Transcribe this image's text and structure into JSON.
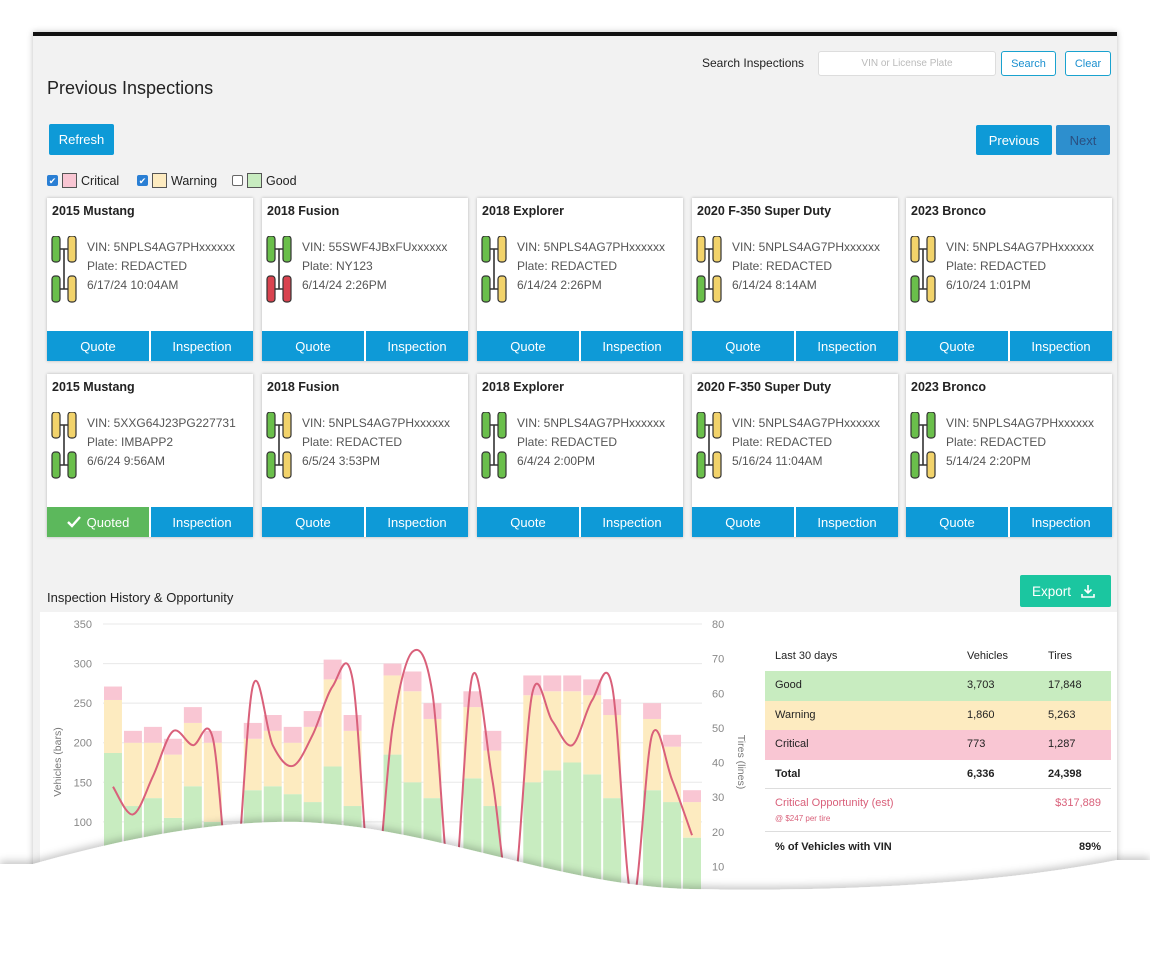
{
  "search": {
    "label": "Search Inspections",
    "placeholder": "VIN or License Plate",
    "search_button": "Search",
    "clear_button": "Clear"
  },
  "header": {
    "title": "Previous Inspections",
    "refresh": "Refresh",
    "previous": "Previous",
    "next": "Next"
  },
  "filters": [
    {
      "label": "Critical",
      "checked": true,
      "color": "#f9c6d3"
    },
    {
      "label": "Warning",
      "checked": true,
      "color": "#fdebc0"
    },
    {
      "label": "Good",
      "checked": false,
      "color": "#c8ecc0"
    }
  ],
  "cards": [
    {
      "title": "2015 Mustang",
      "vin": "VIN: 5NPLS4AG7PHxxxxxx",
      "plate": "Plate: REDACTED",
      "date": "6/17/24 10:04AM",
      "quote": "Quote",
      "inspection": "Inspection",
      "quoted": false,
      "tires": [
        "#6abf4b",
        "#f2d36b",
        "#6abf4b",
        "#f2d36b"
      ]
    },
    {
      "title": "2018 Fusion",
      "vin": "VIN: 55SWF4JBxFUxxxxxx",
      "plate": "Plate: NY123",
      "date": "6/14/24 2:26PM",
      "quote": "Quote",
      "inspection": "Inspection",
      "quoted": false,
      "tires": [
        "#6abf4b",
        "#6abf4b",
        "#d9434f",
        "#d9434f"
      ]
    },
    {
      "title": "2018 Explorer",
      "vin": "VIN: 5NPLS4AG7PHxxxxxx",
      "plate": "Plate: REDACTED",
      "date": "6/14/24 2:26PM",
      "quote": "Quote",
      "inspection": "Inspection",
      "quoted": false,
      "tires": [
        "#6abf4b",
        "#f2d36b",
        "#6abf4b",
        "#f2d36b"
      ]
    },
    {
      "title": "2020 F-350 Super Duty",
      "vin": "VIN: 5NPLS4AG7PHxxxxxx",
      "plate": "Plate: REDACTED",
      "date": "6/14/24 8:14AM",
      "quote": "Quote",
      "inspection": "Inspection",
      "quoted": false,
      "tires": [
        "#f2d36b",
        "#f2d36b",
        "#6abf4b",
        "#f2d36b"
      ]
    },
    {
      "title": "2023 Bronco",
      "vin": "VIN: 5NPLS4AG7PHxxxxxx",
      "plate": "Plate: REDACTED",
      "date": "6/10/24 1:01PM",
      "quote": "Quote",
      "inspection": "Inspection",
      "quoted": false,
      "tires": [
        "#f2d36b",
        "#f2d36b",
        "#6abf4b",
        "#f2d36b"
      ]
    },
    {
      "title": "2015 Mustang",
      "vin": "VIN: 5XXG64J23PG227731",
      "plate": "Plate: IMBAPP2",
      "date": "6/6/24 9:56AM",
      "quote": "Quoted",
      "inspection": "Inspection",
      "quoted": true,
      "tires": [
        "#f2d36b",
        "#f2d36b",
        "#6abf4b",
        "#6abf4b"
      ]
    },
    {
      "title": "2018 Fusion",
      "vin": "VIN: 5NPLS4AG7PHxxxxxx",
      "plate": "Plate: REDACTED",
      "date": "6/5/24 3:53PM",
      "quote": "Quote",
      "inspection": "Inspection",
      "quoted": false,
      "tires": [
        "#6abf4b",
        "#f2d36b",
        "#6abf4b",
        "#f2d36b"
      ]
    },
    {
      "title": "2018 Explorer",
      "vin": "VIN: 5NPLS4AG7PHxxxxxx",
      "plate": "Plate: REDACTED",
      "date": "6/4/24 2:00PM",
      "quote": "Quote",
      "inspection": "Inspection",
      "quoted": false,
      "tires": [
        "#6abf4b",
        "#6abf4b",
        "#6abf4b",
        "#6abf4b"
      ]
    },
    {
      "title": "2020 F-350 Super Duty",
      "vin": "VIN: 5NPLS4AG7PHxxxxxx",
      "plate": "Plate: REDACTED",
      "date": "5/16/24 11:04AM",
      "quote": "Quote",
      "inspection": "Inspection",
      "quoted": false,
      "tires": [
        "#6abf4b",
        "#f2d36b",
        "#6abf4b",
        "#f2d36b"
      ]
    },
    {
      "title": "2023 Bronco",
      "vin": "VIN: 5NPLS4AG7PHxxxxxx",
      "plate": "Plate: REDACTED",
      "date": "5/14/24 2:20PM",
      "quote": "Quote",
      "inspection": "Inspection",
      "quoted": false,
      "tires": [
        "#6abf4b",
        "#6abf4b",
        "#6abf4b",
        "#f2d36b"
      ]
    }
  ],
  "history": {
    "title": "Inspection History & Opportunity",
    "export": "Export"
  },
  "chart_data": {
    "type": "bar",
    "ylabel": "Vehicles (bars)",
    "y2label": "Tires (lines)",
    "ylim": [
      0,
      350
    ],
    "yticks": [
      100,
      150,
      200,
      250,
      300,
      350
    ],
    "y2lim": [
      0,
      80
    ],
    "y2ticks": [
      10,
      20,
      30,
      40,
      50,
      60,
      70,
      80
    ],
    "grid": true,
    "stacked": true,
    "series": [
      {
        "color": "#c8ecc0",
        "values": [
          187,
          120,
          130,
          105,
          145,
          100,
          0,
          140,
          145,
          135,
          125,
          170,
          120,
          0,
          185,
          150,
          130,
          0,
          155,
          120,
          0,
          150,
          165,
          175,
          160,
          130,
          0,
          140,
          125,
          80
        ]
      },
      {
        "color": "#fdebc0",
        "values": [
          67,
          80,
          70,
          80,
          80,
          100,
          0,
          65,
          70,
          65,
          95,
          110,
          95,
          0,
          100,
          115,
          100,
          0,
          90,
          70,
          0,
          110,
          100,
          90,
          100,
          105,
          0,
          90,
          70,
          45
        ]
      },
      {
        "color": "#f9c6d3",
        "values": [
          17,
          15,
          20,
          20,
          20,
          15,
          0,
          20,
          20,
          20,
          20,
          25,
          20,
          0,
          15,
          25,
          20,
          0,
          20,
          25,
          0,
          25,
          20,
          20,
          20,
          20,
          0,
          20,
          15,
          15
        ]
      },
      {
        "type": "line",
        "axis": "y2",
        "color": "#d9607a",
        "values": [
          33,
          25,
          36,
          49,
          45,
          47,
          0,
          62,
          45,
          39,
          48,
          62,
          64,
          0,
          50,
          72,
          60,
          0,
          65,
          35,
          0,
          60,
          52,
          45,
          58,
          62,
          0,
          48,
          35,
          19
        ]
      }
    ]
  },
  "summary": {
    "header": [
      "Last 30 days",
      "Vehicles",
      "Tires"
    ],
    "rows": [
      [
        "Good",
        "3,703",
        "17,848"
      ],
      [
        "Warning",
        "1,860",
        "5,263"
      ],
      [
        "Critical",
        "773",
        "1,287"
      ],
      [
        "Total",
        "6,336",
        "24,398"
      ]
    ],
    "row_colors": [
      "#c8ecc0",
      "#fdebc0",
      "#f9c6d3",
      "#ffffff"
    ],
    "opportunity": {
      "label": "Critical Opportunity (est)",
      "value": "$317,889",
      "note": "@ $247 per tire"
    },
    "vin": {
      "label": "% of Vehicles with VIN",
      "value": "89%"
    }
  }
}
